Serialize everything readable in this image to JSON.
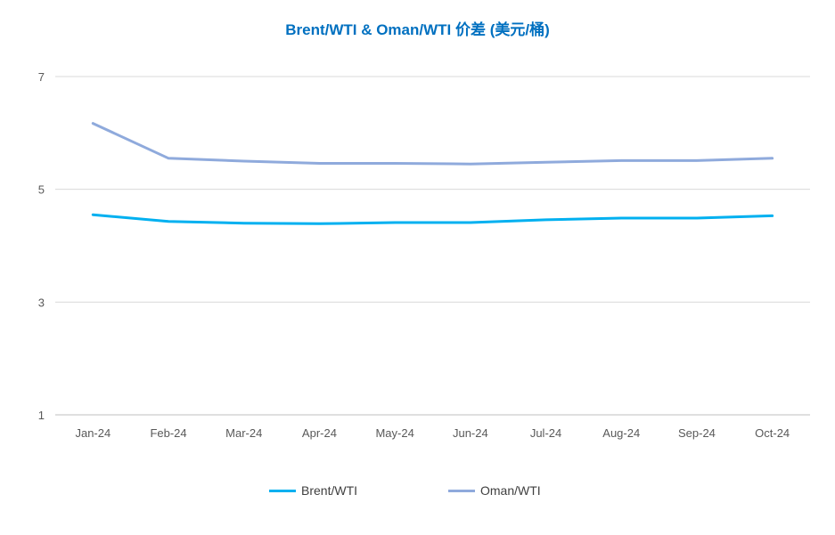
{
  "chart_data": {
    "type": "line",
    "title": "Brent/WTI & Oman/WTI 价差 (美元/桶)",
    "categories": [
      "Jan-24",
      "Feb-24",
      "Mar-24",
      "Apr-24",
      "May-24",
      "Jun-24",
      "Jul-24",
      "Aug-24",
      "Sep-24",
      "Oct-24"
    ],
    "ylim": [
      1,
      7
    ],
    "yticks": [
      "1",
      "3",
      "5",
      "7"
    ],
    "grid": true,
    "legend_position": "bottom",
    "series": [
      {
        "name": "Brent/WTI",
        "color": "#00b0f0",
        "values": [
          4.55,
          4.43,
          4.4,
          4.39,
          4.41,
          4.41,
          4.46,
          4.49,
          4.49,
          4.53
        ]
      },
      {
        "name": "Oman/WTI",
        "color": "#8faadc",
        "values": [
          6.17,
          5.55,
          5.5,
          5.46,
          5.46,
          5.45,
          5.48,
          5.51,
          5.51,
          5.55
        ]
      }
    ]
  }
}
